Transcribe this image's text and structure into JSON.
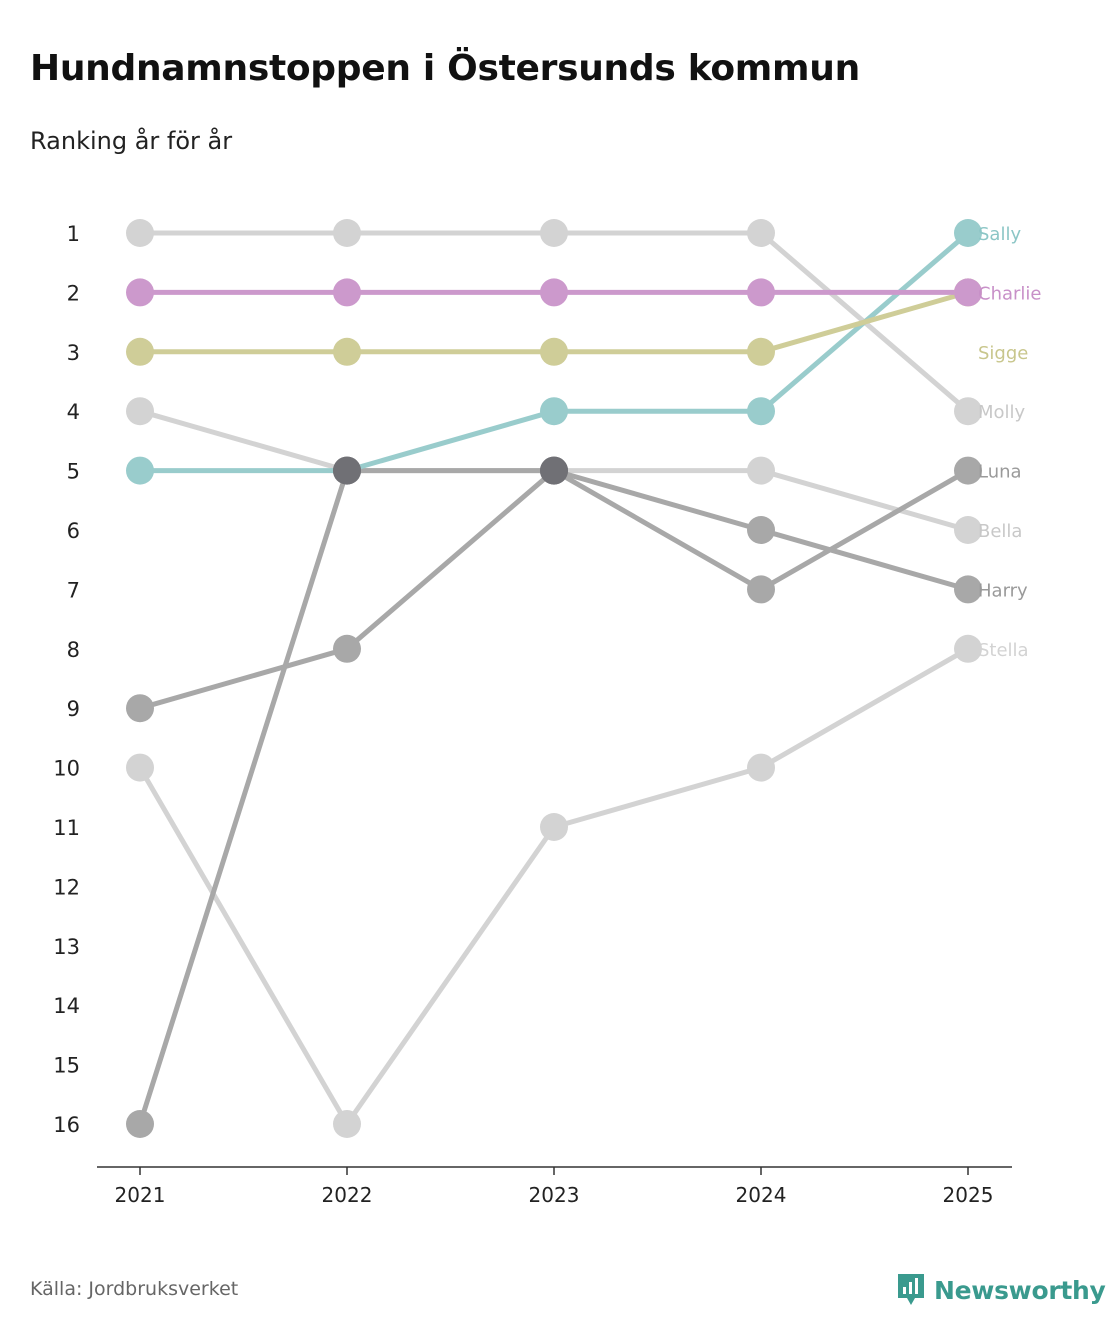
{
  "title": "Hundnamnstoppen i Östersunds kommun",
  "subtitle": "Ranking år för år",
  "source": "Källa: Jordbruksverket",
  "brand": {
    "name": "Newsworthy",
    "icon": "newsworthy-logo-icon",
    "color": "#3a9a8e"
  },
  "chart_data": {
    "type": "line",
    "chart_subtype": "bump",
    "title": "Hundnamnstoppen i Östersunds kommun",
    "subtitle": "Ranking år för år",
    "xlabel": "",
    "ylabel": "",
    "x": [
      "2021",
      "2022",
      "2023",
      "2024",
      "2025"
    ],
    "y_ticks": [
      "1",
      "2",
      "3",
      "4",
      "5",
      "6",
      "7",
      "8",
      "9",
      "10",
      "11",
      "12",
      "13",
      "14",
      "15",
      "16"
    ],
    "ylim": [
      1,
      16
    ],
    "y_inverted": true,
    "grid": false,
    "series": [
      {
        "name": "Stella",
        "values": [
          10,
          16,
          11,
          10,
          8
        ],
        "color": "#d3d3d3",
        "label_color": "#d3d3d3",
        "dot_colors": [
          "#d3d3d3",
          "#d3d3d3",
          "#d3d3d3",
          "#d3d3d3",
          "#d3d3d3"
        ]
      },
      {
        "name": "Bella",
        "values": [
          4,
          5,
          5,
          5,
          6
        ],
        "color": "#d3d3d3",
        "label_color": "#c8c8c8",
        "dot_colors": [
          "#d3d3d3",
          "#d3d3d3",
          "#d3d3d3",
          "#d3d3d3",
          "#d3d3d3"
        ]
      },
      {
        "name": "Molly",
        "values": [
          1,
          1,
          1,
          1,
          4
        ],
        "color": "#d3d3d3",
        "label_color": "#c8c8c8",
        "dot_colors": [
          "#d3d3d3",
          "#d3d3d3",
          "#d3d3d3",
          "#d3d3d3",
          "#d3d3d3"
        ]
      },
      {
        "name": "Luna",
        "values": [
          9,
          8,
          5,
          7,
          5
        ],
        "color": "#a8a8a8",
        "label_color": "#9a9a9a",
        "dot_colors": [
          "#a8a8a8",
          "#a8a8a8",
          "#707075",
          "#a8a8a8",
          "#a8a8a8"
        ]
      },
      {
        "name": "Harry",
        "values": [
          16,
          5,
          5,
          6,
          7
        ],
        "color": "#a8a8a8",
        "label_color": "#9a9a9a",
        "dot_colors": [
          "#a8a8a8",
          "#707075",
          "#707075",
          "#a8a8a8",
          "#a8a8a8"
        ]
      },
      {
        "name": "Sally",
        "values": [
          5,
          5,
          4,
          4,
          1
        ],
        "color": "#99cccc",
        "label_color": "#8cc6c6",
        "dot_colors": [
          "#99cccc",
          "#707075",
          "#99cccc",
          "#99cccc",
          "#99cccc"
        ]
      },
      {
        "name": "Sigge",
        "values": [
          3,
          3,
          3,
          3,
          2
        ],
        "color": "#cfcd98",
        "label_color": "#c8c68c",
        "dot_colors": [
          "#cfcd98",
          "#cfcd98",
          "#cfcd98",
          "#cfcd98",
          "#cfcd98"
        ]
      },
      {
        "name": "Charlie",
        "values": [
          2,
          2,
          2,
          2,
          2
        ],
        "color": "#cc99cc",
        "label_color": "#c890c8",
        "dot_colors": [
          "#cc99cc",
          "#cc99cc",
          "#cc99cc",
          "#cc99cc",
          "#cc99cc"
        ]
      }
    ],
    "end_labels": [
      {
        "name": "Sally",
        "rank": 1
      },
      {
        "name": "Charlie",
        "rank": 2
      },
      {
        "name": "Sigge",
        "rank": 3
      },
      {
        "name": "Molly",
        "rank": 4
      },
      {
        "name": "Luna",
        "rank": 5
      },
      {
        "name": "Bella",
        "rank": 6
      },
      {
        "name": "Harry",
        "rank": 7
      },
      {
        "name": "Stella",
        "rank": 8
      }
    ]
  }
}
